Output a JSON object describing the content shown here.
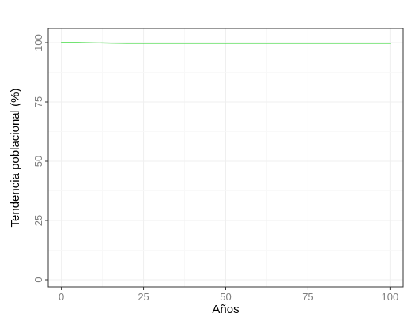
{
  "chart_data": {
    "type": "line",
    "title": "",
    "xlabel": "Años",
    "ylabel": "Tendencia poblacional (%)",
    "xlim": [
      -4,
      104
    ],
    "ylim": [
      -3,
      106
    ],
    "x_ticks": [
      0,
      25,
      50,
      75,
      100
    ],
    "y_ticks": [
      0,
      25,
      50,
      75,
      100
    ],
    "x_tick_labels": [
      "0",
      "25",
      "50",
      "75",
      "100"
    ],
    "y_tick_labels": [
      "0",
      "25",
      "50",
      "75",
      "100"
    ],
    "grid": true,
    "legend": "none",
    "series": [
      {
        "color": "#1ed31e",
        "x": [
          0,
          5,
          10,
          15,
          20,
          25,
          30,
          40,
          50,
          60,
          70,
          80,
          90,
          100
        ],
        "y": [
          100,
          100,
          99.9,
          99.8,
          99.7,
          99.7,
          99.7,
          99.7,
          99.7,
          99.7,
          99.7,
          99.7,
          99.7,
          99.7
        ]
      }
    ]
  }
}
